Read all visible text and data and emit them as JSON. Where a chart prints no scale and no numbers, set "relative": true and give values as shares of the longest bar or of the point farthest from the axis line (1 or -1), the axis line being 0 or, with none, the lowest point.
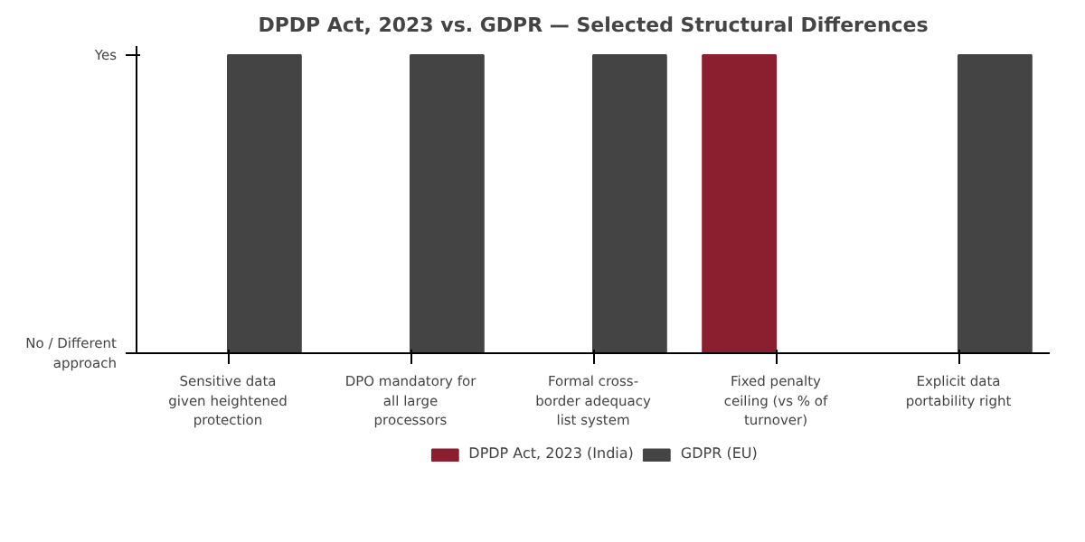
{
  "chart_data": {
    "type": "bar",
    "title": "DPDP Act, 2023 vs. GDPR — Selected Structural Differences",
    "categories": [
      "Sensitive data given heightened protection",
      "DPO mandatory for all large processors",
      "Formal cross-border adequacy list system",
      "Fixed penalty ceiling (vs % of turnover)",
      "Explicit data portability right"
    ],
    "series": [
      {
        "name": "DPDP Act, 2023 (India)",
        "color": "#8b1e2f",
        "values": [
          0,
          0,
          0,
          1,
          0
        ]
      },
      {
        "name": "GDPR (EU)",
        "color": "#444444",
        "values": [
          1,
          1,
          1,
          0,
          1
        ]
      }
    ],
    "relative": true,
    "annotations": [
      "No / Different approach",
      "Yes"
    ],
    "grid": false,
    "legend": "bottom"
  }
}
